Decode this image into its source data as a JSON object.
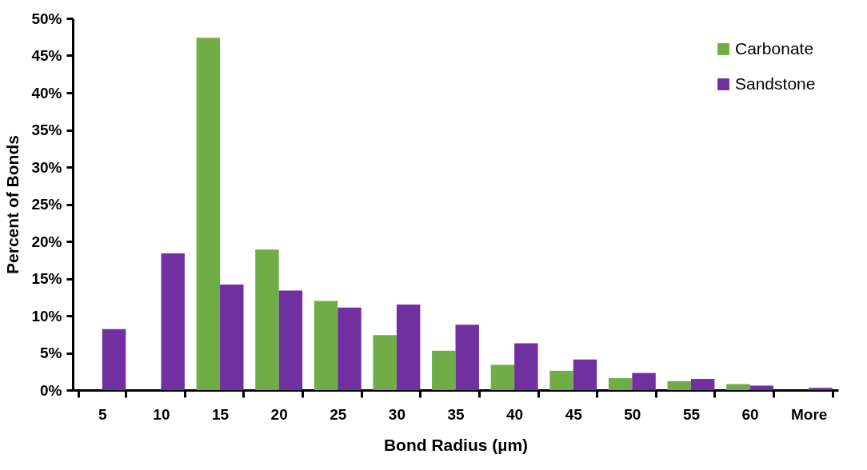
{
  "chart_data": {
    "type": "bar",
    "xlabel": "Bond Radius (µm)",
    "ylabel": "Percent of Bonds",
    "categories": [
      "5",
      "10",
      "15",
      "20",
      "25",
      "30",
      "35",
      "40",
      "45",
      "50",
      "55",
      "60",
      "More"
    ],
    "series": [
      {
        "name": "Carbonate",
        "color": "#70ad47",
        "values": [
          0,
          0,
          47.4,
          18.9,
          12,
          7.4,
          5.3,
          3.4,
          2.6,
          1.6,
          1.2,
          0.8,
          0
        ]
      },
      {
        "name": "Sandstone",
        "color": "#7030a0",
        "values": [
          8.2,
          18.4,
          14.2,
          13.4,
          11.1,
          11.5,
          8.8,
          6.3,
          4.1,
          2.3,
          1.5,
          0.6,
          0.3
        ]
      }
    ],
    "ylim": [
      0,
      50
    ],
    "yticks": [
      {
        "value": 0,
        "label": "0%"
      },
      {
        "value": 5,
        "label": "5%"
      },
      {
        "value": 10,
        "label": "10%"
      },
      {
        "value": 15,
        "label": "15%"
      },
      {
        "value": 20,
        "label": "20%"
      },
      {
        "value": 25,
        "label": "25%"
      },
      {
        "value": 30,
        "label": "30%"
      },
      {
        "value": 35,
        "label": "35%"
      },
      {
        "value": 40,
        "label": "40%"
      },
      {
        "value": 45,
        "label": "45%"
      },
      {
        "value": 50,
        "label": "50%"
      }
    ],
    "grid": false,
    "legend": "top right"
  }
}
